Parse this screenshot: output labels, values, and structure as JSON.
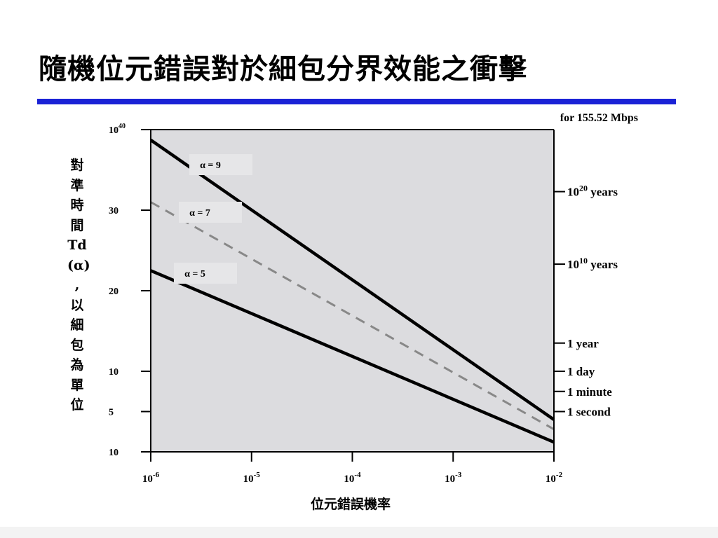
{
  "slide_title": "隨機位元錯誤對於細包分界效能之衝擊",
  "colors": {
    "rule": "#1a22d6",
    "plot_bg": "#dcdcdf",
    "solid": "#000000",
    "dashed": "#888888"
  },
  "chart_data": {
    "type": "line",
    "subtitle": "for 155.52 Mbps",
    "xlabel": "位元錯誤機率",
    "ylabel_chars": [
      "對",
      "準",
      "時",
      "間",
      "Td",
      "(α)",
      ",",
      "以",
      "細",
      "包",
      "為",
      "單",
      "位"
    ],
    "x_scale": "log",
    "xlim": [
      1e-06,
      0.01
    ],
    "ylim": [
      0,
      40
    ],
    "x_ticks": [
      {
        "value": 1e-06,
        "base": "10",
        "exp": "-6"
      },
      {
        "value": 1e-05,
        "base": "10",
        "exp": "-5"
      },
      {
        "value": 0.0001,
        "base": "10",
        "exp": "-4"
      },
      {
        "value": 0.001,
        "base": "10",
        "exp": "-3"
      },
      {
        "value": 0.01,
        "base": "10",
        "exp": "-2"
      }
    ],
    "y_ticks": [
      {
        "value": 40,
        "base": "10",
        "exp": "40"
      },
      {
        "value": 30,
        "base": "30",
        "exp": ""
      },
      {
        "value": 20,
        "base": "20",
        "exp": ""
      },
      {
        "value": 10,
        "base": "10",
        "exp": ""
      },
      {
        "value": 5,
        "base": "5",
        "exp": ""
      },
      {
        "value": 0,
        "base": "10",
        "exp": ""
      }
    ],
    "right_ticks": [
      {
        "value": 32.3,
        "prefix": "10",
        "exp": "20",
        "suffix": " years"
      },
      {
        "value": 23.3,
        "prefix": "10",
        "exp": "10",
        "suffix": " years"
      },
      {
        "value": 13.5,
        "prefix": "1 year",
        "exp": "",
        "suffix": ""
      },
      {
        "value": 10.0,
        "prefix": "1 day",
        "exp": "",
        "suffix": ""
      },
      {
        "value": 7.5,
        "prefix": "1 minute",
        "exp": "",
        "suffix": ""
      },
      {
        "value": 5.0,
        "prefix": "1 second",
        "exp": "",
        "suffix": ""
      }
    ],
    "series": [
      {
        "name": "α = 9",
        "style": "solid",
        "x": [
          1e-06,
          0.01
        ],
        "y": [
          38.7,
          4.0
        ]
      },
      {
        "name": "α = 7",
        "style": "dashed",
        "x": [
          1e-06,
          0.01
        ],
        "y": [
          31.0,
          2.8
        ]
      },
      {
        "name": "α = 5",
        "style": "solid",
        "x": [
          1e-06,
          0.01
        ],
        "y": [
          22.5,
          1.2
        ]
      }
    ]
  }
}
